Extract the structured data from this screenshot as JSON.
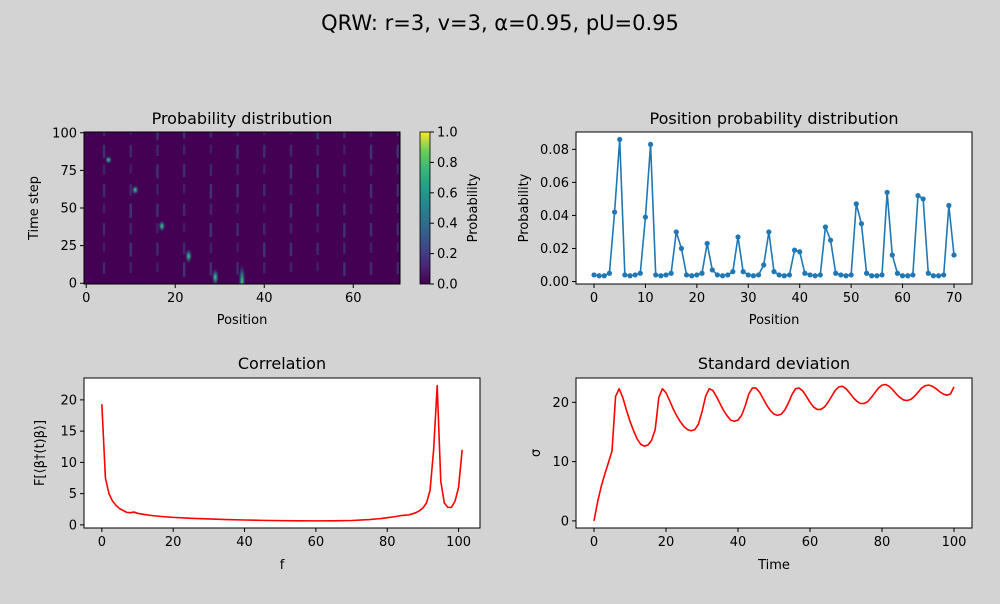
{
  "figure": {
    "suptitle": "QRW: r=3, v=3, α=0.95, pU=0.95"
  },
  "chart_data": [
    {
      "type": "heatmap",
      "title": "Probability distribution",
      "xlabel": "Position",
      "ylabel": "Time step",
      "xlim": [
        -0.5,
        70.5
      ],
      "ylim": [
        -0.5,
        100.5
      ],
      "xticks": [
        0,
        20,
        40,
        60
      ],
      "yticks": [
        0,
        25,
        50,
        75,
        100
      ],
      "colormap": "viridis",
      "background_color": "#440154",
      "colorbar": {
        "label": "Probability",
        "range": [
          0,
          1
        ],
        "ticks": [
          "0.0",
          "0.2",
          "0.4",
          "0.6",
          "0.8",
          "1.0"
        ]
      },
      "bright_spots": [
        {
          "x": 35,
          "y": 1,
          "value": 0.45
        },
        {
          "x": 29,
          "y": 4,
          "value": 0.22
        },
        {
          "x": 23,
          "y": 18,
          "value": 0.18
        },
        {
          "x": 17,
          "y": 38,
          "value": 0.14
        },
        {
          "x": 11,
          "y": 62,
          "value": 0.12
        },
        {
          "x": 5,
          "y": 82,
          "value": 0.1
        }
      ]
    },
    {
      "type": "line",
      "title": "Position probability distribution",
      "xlabel": "Position",
      "ylabel": "Probability",
      "xlim": [
        -3.5,
        73.5
      ],
      "ylim": [
        -0.0015,
        0.0905
      ],
      "xticks": [
        "0",
        "10",
        "20",
        "30",
        "40",
        "50",
        "60",
        "70"
      ],
      "yticks": [
        "0.00",
        "0.02",
        "0.04",
        "0.06",
        "0.08"
      ],
      "color": "#1f77b4",
      "markers": true,
      "x": [
        0,
        1,
        2,
        3,
        4,
        5,
        6,
        7,
        8,
        9,
        10,
        11,
        12,
        13,
        14,
        15,
        16,
        17,
        18,
        19,
        20,
        21,
        22,
        23,
        24,
        25,
        26,
        27,
        28,
        29,
        30,
        31,
        32,
        33,
        34,
        35,
        36,
        37,
        38,
        39,
        40,
        41,
        42,
        43,
        44,
        45,
        46,
        47,
        48,
        49,
        50,
        51,
        52,
        53,
        54,
        55,
        56,
        57,
        58,
        59,
        60,
        61,
        62,
        63,
        64,
        65,
        66,
        67,
        68,
        69,
        70
      ],
      "y": [
        0.004,
        0.0035,
        0.0035,
        0.005,
        0.042,
        0.086,
        0.004,
        0.0035,
        0.004,
        0.005,
        0.039,
        0.083,
        0.004,
        0.0035,
        0.004,
        0.005,
        0.03,
        0.02,
        0.004,
        0.0035,
        0.004,
        0.005,
        0.023,
        0.007,
        0.004,
        0.0035,
        0.004,
        0.006,
        0.027,
        0.006,
        0.004,
        0.0035,
        0.004,
        0.01,
        0.03,
        0.006,
        0.004,
        0.0035,
        0.004,
        0.019,
        0.018,
        0.005,
        0.004,
        0.0035,
        0.004,
        0.033,
        0.025,
        0.005,
        0.004,
        0.0035,
        0.004,
        0.047,
        0.035,
        0.005,
        0.0035,
        0.0035,
        0.004,
        0.054,
        0.016,
        0.005,
        0.0035,
        0.0035,
        0.004,
        0.052,
        0.05,
        0.005,
        0.0035,
        0.0035,
        0.004,
        0.046,
        0.016
      ]
    },
    {
      "type": "line",
      "title": "Correlation",
      "xlabel": "f",
      "ylabel": "F[⟨β†(t)β⟩]",
      "xlim": [
        -5,
        106
      ],
      "ylim": [
        -0.5,
        23.5
      ],
      "xticks": [
        "0",
        "20",
        "40",
        "60",
        "80",
        "100"
      ],
      "yticks": [
        "0",
        "5",
        "10",
        "15",
        "20"
      ],
      "color": "#ff0000",
      "x": [
        0,
        1,
        2,
        3,
        4,
        5,
        6,
        7,
        8,
        9,
        10,
        12,
        14,
        16,
        18,
        20,
        25,
        30,
        35,
        40,
        45,
        50,
        55,
        60,
        65,
        70,
        75,
        78,
        80,
        82,
        84,
        85,
        86,
        87,
        88,
        89,
        90,
        91,
        92,
        93,
        94,
        95,
        96,
        97,
        98,
        99,
        100,
        101
      ],
      "y": [
        19.3,
        7.5,
        5.0,
        3.8,
        3.1,
        2.6,
        2.3,
        2.0,
        1.95,
        2.05,
        1.85,
        1.65,
        1.5,
        1.38,
        1.28,
        1.2,
        1.05,
        0.95,
        0.85,
        0.78,
        0.72,
        0.68,
        0.65,
        0.64,
        0.65,
        0.7,
        0.85,
        1.0,
        1.15,
        1.3,
        1.5,
        1.55,
        1.6,
        1.75,
        1.95,
        2.25,
        2.7,
        3.5,
        5.5,
        12.0,
        22.3,
        7.0,
        3.5,
        2.8,
        2.8,
        3.8,
        6.0,
        12.0
      ]
    },
    {
      "type": "line",
      "title": "Standard deviation",
      "xlabel": "Time",
      "ylabel": "σ",
      "xlim": [
        -5,
        105
      ],
      "ylim": [
        -1.2,
        24.1
      ],
      "xticks": [
        "0",
        "20",
        "40",
        "60",
        "80",
        "100"
      ],
      "yticks": [
        "0",
        "10",
        "20"
      ],
      "color": "#ff0000",
      "x": [
        0,
        1,
        2,
        3,
        4,
        5,
        6,
        7,
        8,
        9,
        10,
        11,
        12,
        13,
        14,
        15,
        16,
        17,
        18,
        19,
        20,
        21,
        22,
        23,
        24,
        25,
        26,
        27,
        28,
        29,
        30,
        31,
        32,
        33,
        34,
        35,
        36,
        37,
        38,
        39,
        40,
        41,
        42,
        43,
        44,
        45,
        46,
        47,
        48,
        49,
        50,
        51,
        52,
        53,
        54,
        55,
        56,
        57,
        58,
        59,
        60,
        61,
        62,
        63,
        64,
        65,
        66,
        67,
        68,
        69,
        70,
        71,
        72,
        73,
        74,
        75,
        76,
        77,
        78,
        79,
        80,
        81,
        82,
        83,
        84,
        85,
        86,
        87,
        88,
        89,
        90,
        91,
        92,
        93,
        94,
        95,
        96,
        97,
        98,
        99,
        100
      ],
      "y": [
        0,
        3.2,
        5.8,
        7.9,
        9.8,
        11.8,
        21.0,
        22.3,
        20.8,
        18.7,
        16.8,
        15.2,
        13.8,
        12.9,
        12.6,
        12.8,
        13.6,
        15.4,
        20.8,
        22.3,
        21.6,
        20.3,
        18.9,
        17.7,
        16.7,
        15.9,
        15.4,
        15.2,
        15.4,
        16.3,
        18.4,
        21.0,
        22.3,
        22.0,
        21.0,
        19.8,
        18.6,
        17.7,
        17.0,
        16.8,
        17.0,
        17.8,
        19.4,
        21.4,
        22.4,
        22.4,
        21.7,
        20.6,
        19.5,
        18.6,
        18.0,
        17.8,
        18.0,
        18.7,
        19.9,
        21.3,
        22.3,
        22.4,
        21.9,
        21.0,
        20.0,
        19.2,
        18.8,
        18.8,
        19.2,
        20.0,
        21.0,
        22.0,
        22.6,
        22.7,
        22.3,
        21.6,
        20.8,
        20.2,
        19.8,
        19.8,
        20.1,
        20.8,
        21.6,
        22.4,
        22.9,
        23.0,
        22.7,
        22.1,
        21.4,
        20.8,
        20.4,
        20.3,
        20.5,
        21.0,
        21.7,
        22.4,
        22.8,
        22.9,
        22.7,
        22.3,
        21.8,
        21.4,
        21.2,
        21.4,
        22.6
      ]
    }
  ]
}
